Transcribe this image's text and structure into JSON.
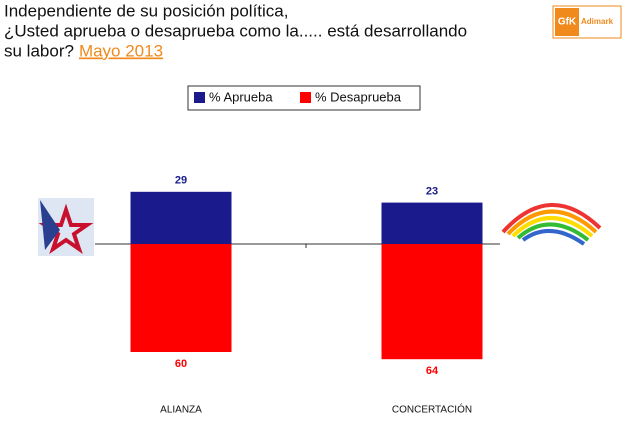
{
  "chart_data": {
    "type": "diverging-bar",
    "title": [
      "Independiente de su posición política,",
      "¿Usted aprueba o desaprueba como la..... está desarrollando",
      "su labor?"
    ],
    "subtitle": "Mayo 2013",
    "logo": {
      "brand": "GfK",
      "name": "Adimark"
    },
    "categories": [
      "ALIANZA",
      "CONCERTACIÓN"
    ],
    "series": [
      {
        "name": "% Aprueba",
        "color": "#1a1a8c",
        "values": [
          29,
          23
        ]
      },
      {
        "name": "% Desaprueba",
        "color": "#ff0000",
        "values": [
          60,
          64
        ]
      }
    ]
  }
}
